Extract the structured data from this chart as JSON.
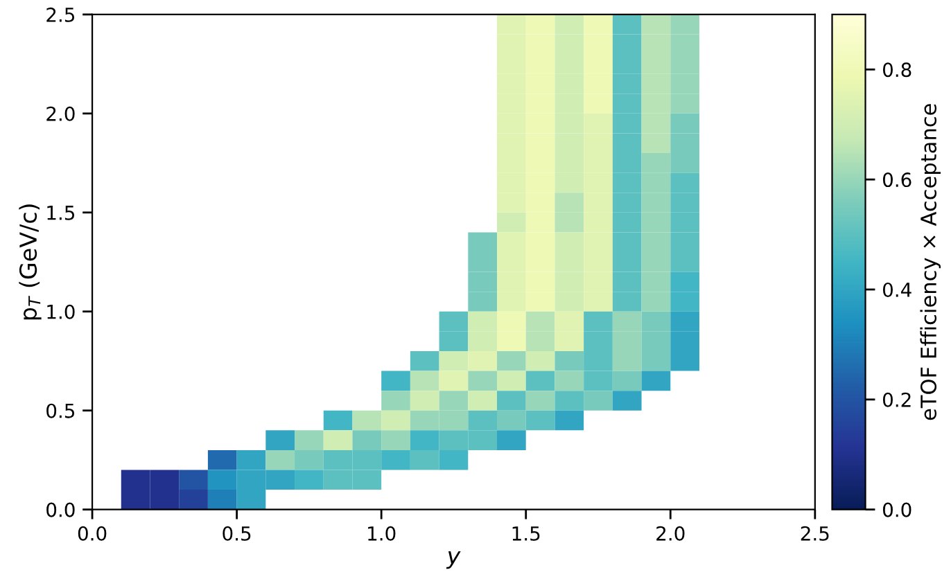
{
  "chart_data": {
    "type": "heatmap",
    "xlabel": "y",
    "ylabel": "p$_{T}$ (GeV/c)",
    "clabel": "eTOF Efficiency × Acceptance",
    "xlim": [
      0.0,
      2.5
    ],
    "ylim": [
      0.0,
      2.5
    ],
    "xticks": [
      {
        "value": 0,
        "label": "0.0"
      },
      0.5,
      {
        "value": 1,
        "label": "1.0"
      },
      1.5,
      {
        "value": 2,
        "label": "2.0"
      },
      2.5
    ],
    "yticks": [
      {
        "value": 0,
        "label": "0.0"
      },
      0.5,
      {
        "value": 1,
        "label": "1.0"
      },
      1.5,
      {
        "value": 2,
        "label": "2.0"
      },
      2.5
    ],
    "clim": [
      0.0,
      0.9
    ],
    "cticks": [
      {
        "value": 0,
        "label": "0.0"
      },
      0.2,
      0.4,
      0.6,
      0.8
    ],
    "x": [
      0.05,
      0.15,
      0.25,
      0.35,
      0.45,
      0.55,
      0.65,
      0.75,
      0.85,
      0.95,
      1.05,
      1.15,
      1.25,
      1.35,
      1.45,
      1.55,
      1.65,
      1.75,
      1.85,
      1.95,
      2.05,
      2.15,
      2.25,
      2.35,
      2.45
    ],
    "y": [
      2.45,
      2.35,
      2.25,
      2.15,
      2.05,
      1.95,
      1.85,
      1.75,
      1.65,
      1.55,
      1.45,
      1.35,
      1.25,
      1.15,
      1.05,
      0.95,
      0.85,
      0.75,
      0.65,
      0.55,
      0.45,
      0.35,
      0.25,
      0.15,
      0.05
    ],
    "cells": [
      [
        null,
        null,
        null,
        null,
        null,
        null,
        null,
        null,
        null,
        null,
        null,
        null,
        null,
        null,
        0.75,
        0.8,
        0.7,
        0.8,
        0.5,
        0.65,
        0.6,
        null,
        null,
        null,
        null
      ],
      [
        null,
        null,
        null,
        null,
        null,
        null,
        null,
        null,
        null,
        null,
        null,
        null,
        null,
        null,
        0.75,
        0.8,
        0.7,
        0.8,
        0.5,
        0.65,
        0.6,
        null,
        null,
        null,
        null
      ],
      [
        null,
        null,
        null,
        null,
        null,
        null,
        null,
        null,
        null,
        null,
        null,
        null,
        null,
        null,
        0.75,
        0.8,
        0.7,
        0.8,
        0.5,
        0.65,
        0.6,
        null,
        null,
        null,
        null
      ],
      [
        null,
        null,
        null,
        null,
        null,
        null,
        null,
        null,
        null,
        null,
        null,
        null,
        null,
        null,
        0.75,
        0.8,
        0.7,
        0.8,
        0.5,
        0.65,
        0.6,
        null,
        null,
        null,
        null
      ],
      [
        null,
        null,
        null,
        null,
        null,
        null,
        null,
        null,
        null,
        null,
        null,
        null,
        null,
        null,
        0.75,
        0.8,
        0.7,
        0.8,
        0.5,
        0.65,
        0.6,
        null,
        null,
        null,
        null
      ],
      [
        null,
        null,
        null,
        null,
        null,
        null,
        null,
        null,
        null,
        null,
        null,
        null,
        null,
        null,
        0.75,
        0.8,
        0.7,
        0.75,
        0.5,
        0.65,
        0.55,
        null,
        null,
        null,
        null
      ],
      [
        null,
        null,
        null,
        null,
        null,
        null,
        null,
        null,
        null,
        null,
        null,
        null,
        null,
        null,
        0.75,
        0.8,
        0.7,
        0.75,
        0.5,
        0.65,
        0.55,
        null,
        null,
        null,
        null
      ],
      [
        null,
        null,
        null,
        null,
        null,
        null,
        null,
        null,
        null,
        null,
        null,
        null,
        null,
        null,
        0.75,
        0.8,
        0.7,
        0.75,
        0.5,
        0.6,
        0.55,
        null,
        null,
        null,
        null
      ],
      [
        null,
        null,
        null,
        null,
        null,
        null,
        null,
        null,
        null,
        null,
        null,
        null,
        null,
        null,
        0.75,
        0.8,
        0.7,
        0.75,
        0.5,
        0.6,
        0.5,
        null,
        null,
        null,
        null
      ],
      [
        null,
        null,
        null,
        null,
        null,
        null,
        null,
        null,
        null,
        null,
        null,
        null,
        null,
        null,
        0.75,
        0.8,
        0.65,
        0.75,
        0.5,
        0.6,
        0.5,
        null,
        null,
        null,
        null
      ],
      [
        null,
        null,
        null,
        null,
        null,
        null,
        null,
        null,
        null,
        null,
        null,
        null,
        null,
        null,
        0.7,
        0.8,
        0.65,
        0.75,
        0.5,
        0.6,
        0.5,
        null,
        null,
        null,
        null
      ],
      [
        null,
        null,
        null,
        null,
        null,
        null,
        null,
        null,
        null,
        null,
        null,
        null,
        null,
        0.55,
        0.75,
        0.8,
        0.7,
        0.75,
        0.5,
        0.6,
        0.5,
        null,
        null,
        null,
        null
      ],
      [
        null,
        null,
        null,
        null,
        null,
        null,
        null,
        null,
        null,
        null,
        null,
        null,
        null,
        0.55,
        0.75,
        0.8,
        0.7,
        0.75,
        0.5,
        0.6,
        0.5,
        null,
        null,
        null,
        null
      ],
      [
        null,
        null,
        null,
        null,
        null,
        null,
        null,
        null,
        null,
        null,
        null,
        null,
        null,
        0.55,
        0.75,
        0.8,
        0.7,
        0.75,
        0.5,
        0.6,
        0.45,
        null,
        null,
        null,
        null
      ],
      [
        null,
        null,
        null,
        null,
        null,
        null,
        null,
        null,
        null,
        null,
        null,
        null,
        null,
        0.55,
        0.75,
        0.8,
        0.7,
        0.75,
        0.5,
        0.6,
        0.45,
        null,
        null,
        null,
        null
      ],
      [
        null,
        null,
        null,
        null,
        null,
        null,
        null,
        null,
        null,
        null,
        null,
        null,
        0.5,
        0.7,
        0.8,
        0.65,
        0.75,
        0.5,
        0.6,
        0.55,
        0.4,
        null,
        null,
        null,
        null
      ],
      [
        null,
        null,
        null,
        null,
        null,
        null,
        null,
        null,
        null,
        null,
        null,
        null,
        0.5,
        0.7,
        0.8,
        0.65,
        0.75,
        0.5,
        0.6,
        0.55,
        0.4,
        null,
        null,
        null,
        null
      ],
      [
        null,
        null,
        null,
        null,
        null,
        null,
        null,
        null,
        null,
        null,
        null,
        0.5,
        0.7,
        0.75,
        0.6,
        0.7,
        0.55,
        0.5,
        0.6,
        0.55,
        0.4,
        null,
        null,
        null,
        null
      ],
      [
        null,
        null,
        null,
        null,
        null,
        null,
        null,
        null,
        null,
        null,
        0.45,
        0.65,
        0.75,
        0.6,
        0.7,
        0.5,
        0.6,
        0.5,
        0.55,
        0.4,
        null,
        null,
        null,
        null,
        null
      ],
      [
        null,
        null,
        null,
        null,
        null,
        null,
        null,
        null,
        null,
        null,
        0.6,
        0.7,
        0.6,
        0.7,
        0.5,
        0.6,
        0.5,
        0.55,
        0.4,
        null,
        null,
        null,
        null,
        null,
        null
      ],
      [
        null,
        null,
        null,
        null,
        null,
        null,
        null,
        null,
        0.45,
        0.65,
        0.7,
        0.6,
        0.6,
        0.5,
        0.55,
        0.5,
        0.4,
        null,
        null,
        null,
        null,
        null,
        null,
        null,
        null
      ],
      [
        null,
        null,
        null,
        null,
        null,
        null,
        0.4,
        0.6,
        0.7,
        0.55,
        0.6,
        0.45,
        0.5,
        0.5,
        0.4,
        null,
        null,
        null,
        null,
        null,
        null,
        null,
        null,
        null,
        null
      ],
      [
        null,
        null,
        null,
        null,
        0.25,
        0.4,
        0.6,
        0.55,
        0.5,
        0.5,
        0.45,
        0.5,
        0.45,
        null,
        null,
        null,
        null,
        null,
        null,
        null,
        null,
        null,
        null,
        null,
        null
      ],
      [
        null,
        0.1,
        0.1,
        0.2,
        0.35,
        0.4,
        0.4,
        0.45,
        0.5,
        0.5,
        null,
        null,
        null,
        null,
        null,
        null,
        null,
        null,
        null,
        null,
        null,
        null,
        null,
        null,
        null
      ],
      [
        null,
        0.1,
        0.1,
        0.15,
        0.3,
        0.4,
        null,
        null,
        null,
        null,
        null,
        null,
        null,
        null,
        null,
        null,
        null,
        null,
        null,
        null,
        null,
        null,
        null,
        null,
        null
      ]
    ]
  }
}
